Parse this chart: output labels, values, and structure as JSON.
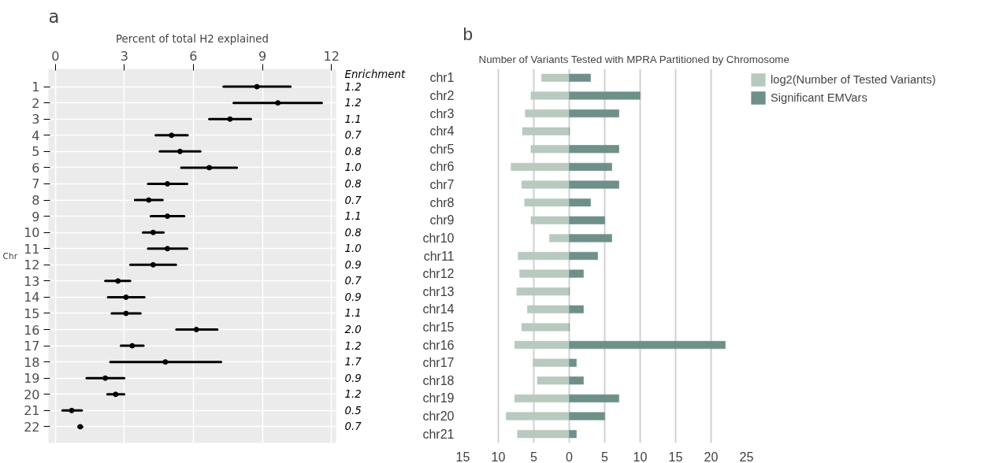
{
  "chart_data": [
    {
      "type": "scatter",
      "title": "a",
      "xlabel": "Percent of total H2 explained",
      "ylabel": "Chr",
      "orientation": "horizontal",
      "categories": [
        "1",
        "2",
        "3",
        "4",
        "5",
        "6",
        "7",
        "8",
        "9",
        "10",
        "11",
        "12",
        "13",
        "14",
        "15",
        "16",
        "17",
        "18",
        "19",
        "20",
        "21",
        "22"
      ],
      "values": [
        8.76,
        9.67,
        7.59,
        5.05,
        5.42,
        6.69,
        4.87,
        4.06,
        4.87,
        4.25,
        4.87,
        4.25,
        2.72,
        3.07,
        3.07,
        6.13,
        3.34,
        4.78,
        2.17,
        2.62,
        0.71,
        1.08
      ],
      "errors": [
        [
          7.31,
          10.22
        ],
        [
          7.75,
          11.58
        ],
        [
          6.69,
          8.5
        ],
        [
          4.36,
          5.75
        ],
        [
          4.54,
          6.3
        ],
        [
          5.47,
          7.89
        ],
        [
          4.03,
          5.73
        ],
        [
          3.46,
          4.66
        ],
        [
          4.15,
          5.6
        ],
        [
          3.81,
          4.7
        ],
        [
          4.03,
          5.73
        ],
        [
          3.26,
          5.24
        ],
        [
          2.17,
          3.25
        ],
        [
          2.29,
          3.87
        ],
        [
          2.45,
          3.7
        ],
        [
          5.26,
          7.04
        ],
        [
          2.85,
          3.83
        ],
        [
          2.39,
          7.2
        ],
        [
          1.36,
          2.99
        ],
        [
          2.26,
          2.99
        ],
        [
          0.31,
          1.15
        ],
        [
          1.0,
          1.17
        ]
      ],
      "color": "#000000",
      "marker": "circle",
      "xlim": [
        -0.3,
        12.2
      ],
      "xticks": [
        0,
        3,
        6,
        9,
        12
      ],
      "grid": true,
      "annotations": [
        "Enrichment",
        "1.2",
        "1.2",
        "1.1",
        "0.7",
        "0.8",
        "1.0",
        "0.8",
        "0.7",
        "1.1",
        "0.8",
        "1.0",
        "0.9",
        "0.7",
        "0.9",
        "1.1",
        "2.0",
        "1.2",
        "1.7",
        "0.9",
        "1.2",
        "0.5",
        "0.7"
      ]
    },
    {
      "type": "bar",
      "title": "b",
      "subtitle": "Number of Variants Tested with MPRA Partitioned by Chromosome",
      "orientation": "horizontal",
      "stacked": true,
      "categories": [
        "chr1",
        "chr2",
        "chr3",
        "chr4",
        "chr5",
        "chr6",
        "chr7",
        "chr8",
        "chr9",
        "chr10",
        "chr11",
        "chr12",
        "chr13",
        "chr14",
        "chr15",
        "chr16",
        "chr17",
        "chr18",
        "chr19",
        "chr20",
        "chr21"
      ],
      "series": [
        {
          "name": "log2(Number of Tested Variants)",
          "color": "#b8c9bf",
          "values": [
            -3.9,
            -5.4,
            -6.2,
            -6.6,
            -5.4,
            -8.2,
            -6.7,
            -6.3,
            -5.4,
            -2.8,
            -7.2,
            -7.0,
            -7.4,
            -5.9,
            -6.7,
            -7.7,
            -5.1,
            -4.5,
            -7.7,
            -8.9,
            -7.3
          ]
        },
        {
          "name": "Significant EMVars",
          "color": "#6e9088",
          "values": [
            3,
            10,
            7,
            0,
            7,
            6,
            7,
            3,
            5,
            6,
            4,
            2,
            0,
            2,
            0,
            22,
            1,
            2,
            7,
            5,
            1
          ]
        }
      ],
      "xlim": [
        -15,
        25
      ],
      "xticks": [
        {
          "value": -15,
          "label": "15"
        },
        {
          "value": -10,
          "label": "10"
        },
        {
          "value": -5,
          "label": "5"
        },
        0,
        5,
        10,
        15,
        20,
        25
      ],
      "grid": "x",
      "legend": "right"
    }
  ]
}
